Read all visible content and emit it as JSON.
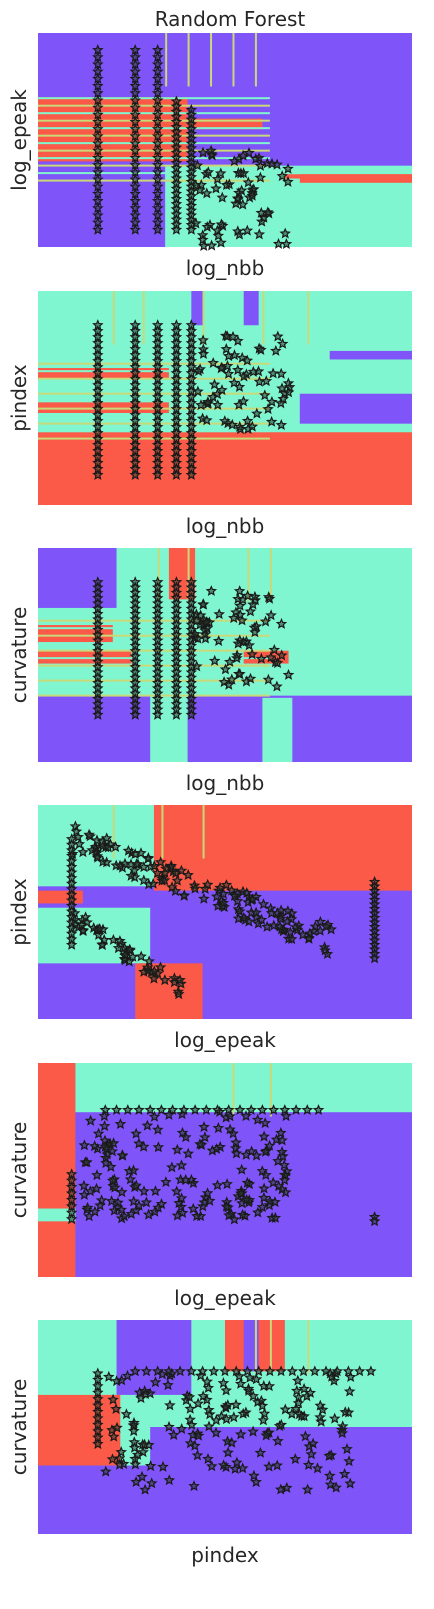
{
  "figure": {
    "title": "Random Forest"
  },
  "colors": {
    "class_a": "#7f54f9",
    "class_b": "#80f6d0",
    "class_c": "#fa5a47",
    "boundary": "#c8d97a",
    "marker_edge": "#1a1a1a",
    "marker_fill": "#2a3b2a"
  },
  "chart_data": [
    {
      "type": "scatter",
      "title": "Random Forest",
      "xlabel": "log_nbb",
      "ylabel": "log_epeak",
      "ticks_visible": false,
      "grid": false,
      "background": "decision regions",
      "point_columns": [
        {
          "x": 0.16,
          "y_range": [
            0.08,
            1.0
          ]
        },
        {
          "x": 0.26,
          "y_range": [
            0.08,
            1.0
          ]
        },
        {
          "x": 0.32,
          "y_range": [
            0.08,
            1.0
          ]
        },
        {
          "x": 0.37,
          "y_range": [
            0.08,
            0.78
          ]
        },
        {
          "x": 0.41,
          "y_range": [
            0.08,
            0.72
          ]
        }
      ]
    },
    {
      "type": "scatter",
      "xlabel": "log_nbb",
      "ylabel": "pindex",
      "ticks_visible": false,
      "grid": false,
      "background": "decision regions"
    },
    {
      "type": "scatter",
      "xlabel": "log_nbb",
      "ylabel": "curvature",
      "ticks_visible": false,
      "grid": false,
      "background": "decision regions"
    },
    {
      "type": "scatter",
      "xlabel": "log_epeak",
      "ylabel": "pindex",
      "ticks_visible": false,
      "grid": false,
      "background": "decision regions"
    },
    {
      "type": "scatter",
      "xlabel": "log_epeak",
      "ylabel": "curvature",
      "ticks_visible": false,
      "grid": false,
      "background": "decision regions"
    },
    {
      "type": "scatter",
      "xlabel": "pindex",
      "ylabel": "curvature",
      "ticks_visible": false,
      "grid": false,
      "background": "decision regions"
    }
  ]
}
